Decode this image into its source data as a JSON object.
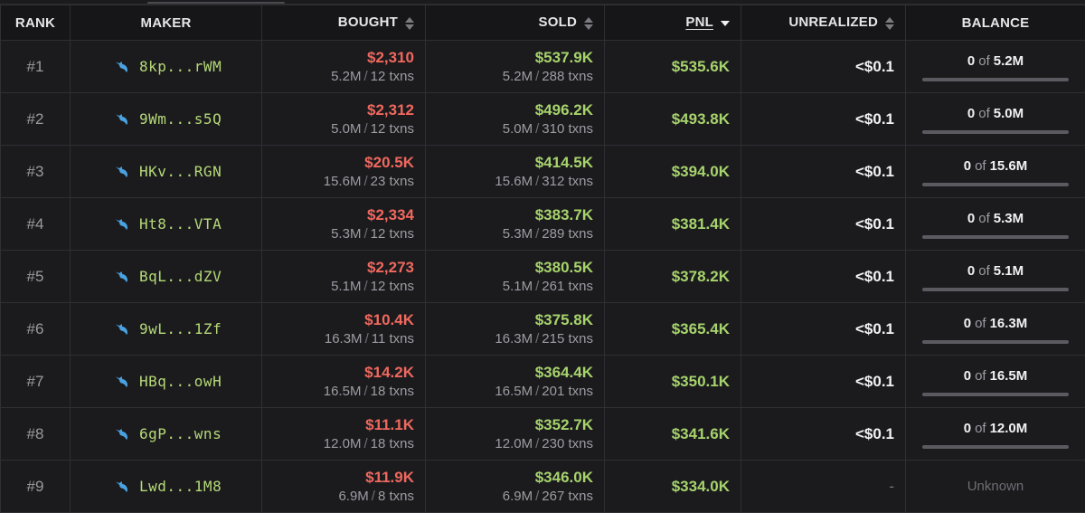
{
  "header": {
    "rank": "RANK",
    "maker": "MAKER",
    "bought": "BOUGHT",
    "sold": "SOLD",
    "pnl": "PNL",
    "unrealized": "UNREALIZED",
    "balance": "BALANCE"
  },
  "labels": {
    "txns": "txns",
    "of": "of",
    "slash": "/"
  },
  "icon": "whale-icon",
  "colors": {
    "loss": "#f0685e",
    "gain": "#a7d36c",
    "address": "#b5d977",
    "whale": "#4aa3e0"
  },
  "rows": [
    {
      "rank": "#1",
      "maker": "8kp...rWM",
      "bought_usd": "$2,310",
      "bought_tokens": "5.2M",
      "bought_txns": "12",
      "sold_usd": "$537.9K",
      "sold_tokens": "5.2M",
      "sold_txns": "288",
      "pnl": "$535.6K",
      "unrealized": "<$0.1",
      "balance_held": "0",
      "balance_total": "5.2M"
    },
    {
      "rank": "#2",
      "maker": "9Wm...s5Q",
      "bought_usd": "$2,312",
      "bought_tokens": "5.0M",
      "bought_txns": "12",
      "sold_usd": "$496.2K",
      "sold_tokens": "5.0M",
      "sold_txns": "310",
      "pnl": "$493.8K",
      "unrealized": "<$0.1",
      "balance_held": "0",
      "balance_total": "5.0M"
    },
    {
      "rank": "#3",
      "maker": "HKv...RGN",
      "bought_usd": "$20.5K",
      "bought_tokens": "15.6M",
      "bought_txns": "23",
      "sold_usd": "$414.5K",
      "sold_tokens": "15.6M",
      "sold_txns": "312",
      "pnl": "$394.0K",
      "unrealized": "<$0.1",
      "balance_held": "0",
      "balance_total": "15.6M"
    },
    {
      "rank": "#4",
      "maker": "Ht8...VTA",
      "bought_usd": "$2,334",
      "bought_tokens": "5.3M",
      "bought_txns": "12",
      "sold_usd": "$383.7K",
      "sold_tokens": "5.3M",
      "sold_txns": "289",
      "pnl": "$381.4K",
      "unrealized": "<$0.1",
      "balance_held": "0",
      "balance_total": "5.3M"
    },
    {
      "rank": "#5",
      "maker": "BqL...dZV",
      "bought_usd": "$2,273",
      "bought_tokens": "5.1M",
      "bought_txns": "12",
      "sold_usd": "$380.5K",
      "sold_tokens": "5.1M",
      "sold_txns": "261",
      "pnl": "$378.2K",
      "unrealized": "<$0.1",
      "balance_held": "0",
      "balance_total": "5.1M"
    },
    {
      "rank": "#6",
      "maker": "9wL...1Zf",
      "bought_usd": "$10.4K",
      "bought_tokens": "16.3M",
      "bought_txns": "11",
      "sold_usd": "$375.8K",
      "sold_tokens": "16.3M",
      "sold_txns": "215",
      "pnl": "$365.4K",
      "unrealized": "<$0.1",
      "balance_held": "0",
      "balance_total": "16.3M"
    },
    {
      "rank": "#7",
      "maker": "HBq...owH",
      "bought_usd": "$14.2K",
      "bought_tokens": "16.5M",
      "bought_txns": "18",
      "sold_usd": "$364.4K",
      "sold_tokens": "16.5M",
      "sold_txns": "201",
      "pnl": "$350.1K",
      "unrealized": "<$0.1",
      "balance_held": "0",
      "balance_total": "16.5M"
    },
    {
      "rank": "#8",
      "maker": "6gP...wns",
      "bought_usd": "$11.1K",
      "bought_tokens": "12.0M",
      "bought_txns": "18",
      "sold_usd": "$352.7K",
      "sold_tokens": "12.0M",
      "sold_txns": "230",
      "pnl": "$341.6K",
      "unrealized": "<$0.1",
      "balance_held": "0",
      "balance_total": "12.0M"
    },
    {
      "rank": "#9",
      "maker": "Lwd...1M8",
      "bought_usd": "$11.9K",
      "bought_tokens": "6.9M",
      "bought_txns": "8",
      "sold_usd": "$346.0K",
      "sold_tokens": "6.9M",
      "sold_txns": "267",
      "pnl": "$334.0K",
      "unrealized": "-",
      "balance_unknown": "Unknown"
    }
  ]
}
